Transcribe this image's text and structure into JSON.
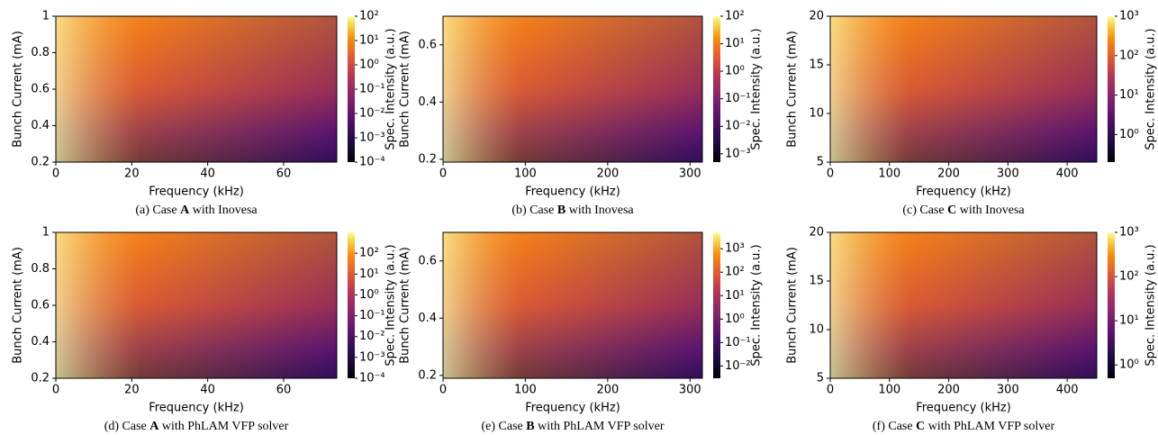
{
  "chart_data": [
    {
      "type": "heatmap",
      "colormap": "inferno",
      "caption": {
        "prefix": "(a) Case ",
        "bold": "A",
        "suffix": " with Inovesa"
      },
      "xlabel": "Frequency (kHz)",
      "ylabel": "Bunch Current (mA)",
      "xlim": [
        0,
        74
      ],
      "xticks": [
        0,
        20,
        40,
        60
      ],
      "ylim": [
        0.2,
        1
      ],
      "yticks": [
        0.2,
        0.4,
        0.6,
        0.8,
        1
      ],
      "colorbar": {
        "label": "Spec. Intensity (a.u.)",
        "log": true,
        "lim": [
          0.0001,
          100
        ],
        "ticks": [
          {
            "value": 0.0001,
            "label": "10⁻⁴"
          },
          {
            "value": 0.001,
            "label": "10⁻³"
          },
          {
            "value": 0.01,
            "label": "10⁻²"
          },
          {
            "value": 0.1,
            "label": "10⁻¹"
          },
          {
            "value": 1,
            "label": "10⁰"
          },
          {
            "value": 10,
            "label": "10¹"
          },
          {
            "value": 100,
            "label": "10²"
          }
        ]
      }
    },
    {
      "type": "heatmap",
      "colormap": "inferno",
      "caption": {
        "prefix": "(b) Case ",
        "bold": "B",
        "suffix": " with Inovesa"
      },
      "xlabel": "Frequency (kHz)",
      "ylabel": "Bunch Current (mA)",
      "xlim": [
        0,
        315
      ],
      "xticks": [
        0,
        100,
        200,
        300
      ],
      "ylim": [
        0.19,
        0.7
      ],
      "yticks": [
        0.2,
        0.4,
        0.6
      ],
      "colorbar": {
        "label": "Spec. Intensity (a.u.)",
        "log": true,
        "lim": [
          0.0005,
          100
        ],
        "ticks": [
          {
            "value": 0.001,
            "label": "10⁻³"
          },
          {
            "value": 0.01,
            "label": "10⁻²"
          },
          {
            "value": 0.1,
            "label": "10⁻¹"
          },
          {
            "value": 1,
            "label": "10⁰"
          },
          {
            "value": 10,
            "label": "10¹"
          },
          {
            "value": 100,
            "label": "10²"
          }
        ]
      }
    },
    {
      "type": "heatmap",
      "colormap": "inferno",
      "caption": {
        "prefix": "(c) Case ",
        "bold": "C",
        "suffix": " with Inovesa"
      },
      "xlabel": "Frequency (kHz)",
      "ylabel": "Bunch Current (mA)",
      "xlim": [
        0,
        450
      ],
      "xticks": [
        0,
        100,
        200,
        300,
        400
      ],
      "ylim": [
        5,
        20
      ],
      "yticks": [
        5,
        10,
        15,
        20
      ],
      "colorbar": {
        "label": "Spec. Intensity (a.u.)",
        "log": true,
        "lim": [
          0.2,
          1000
        ],
        "ticks": [
          {
            "value": 1,
            "label": "10⁰"
          },
          {
            "value": 10,
            "label": "10¹"
          },
          {
            "value": 100,
            "label": "10²"
          },
          {
            "value": 1000,
            "label": "10³"
          }
        ]
      }
    },
    {
      "type": "heatmap",
      "colormap": "inferno",
      "caption": {
        "prefix": "(d) Case ",
        "bold": "A",
        "suffix": " with PhLAM VFP solver"
      },
      "xlabel": "Frequency (kHz)",
      "ylabel": "Bunch Current (mA)",
      "xlim": [
        0,
        74
      ],
      "xticks": [
        0,
        20,
        40,
        60
      ],
      "ylim": [
        0.2,
        1
      ],
      "yticks": [
        0.2,
        0.4,
        0.6,
        0.8,
        1
      ],
      "colorbar": {
        "label": "Spec. Intensity (a.u.)",
        "log": true,
        "lim": [
          0.0001,
          1000
        ],
        "ticks": [
          {
            "value": 0.0001,
            "label": "10⁻⁴"
          },
          {
            "value": 0.001,
            "label": "10⁻³"
          },
          {
            "value": 0.01,
            "label": "10⁻²"
          },
          {
            "value": 0.1,
            "label": "10⁻¹"
          },
          {
            "value": 1,
            "label": "10⁰"
          },
          {
            "value": 10,
            "label": "10¹"
          },
          {
            "value": 100,
            "label": "10²"
          }
        ]
      }
    },
    {
      "type": "heatmap",
      "colormap": "inferno",
      "caption": {
        "prefix": "(e) Case ",
        "bold": "B",
        "suffix": " with PhLAM VFP solver"
      },
      "xlabel": "Frequency (kHz)",
      "ylabel": "Bunch Current (mA)",
      "xlim": [
        0,
        315
      ],
      "xticks": [
        0,
        100,
        200,
        300
      ],
      "ylim": [
        0.19,
        0.7
      ],
      "yticks": [
        0.2,
        0.4,
        0.6
      ],
      "colorbar": {
        "label": "Spec. Intensity (a.u.)",
        "log": true,
        "lim": [
          0.003,
          5000
        ],
        "ticks": [
          {
            "value": 0.01,
            "label": "10⁻²"
          },
          {
            "value": 0.1,
            "label": "10⁻¹"
          },
          {
            "value": 1,
            "label": "10⁰"
          },
          {
            "value": 10,
            "label": "10¹"
          },
          {
            "value": 100,
            "label": "10²"
          },
          {
            "value": 1000,
            "label": "10³"
          }
        ]
      }
    },
    {
      "type": "heatmap",
      "colormap": "inferno",
      "caption": {
        "prefix": "(f) Case ",
        "bold": "C",
        "suffix": " with PhLAM VFP solver"
      },
      "xlabel": "Frequency (kHz)",
      "ylabel": "Bunch Current (mA)",
      "xlim": [
        0,
        450
      ],
      "xticks": [
        0,
        100,
        200,
        300,
        400
      ],
      "ylim": [
        5,
        20
      ],
      "yticks": [
        5,
        10,
        15,
        20
      ],
      "colorbar": {
        "label": "Spec. Intensity (a.u.)",
        "log": true,
        "lim": [
          0.5,
          1000
        ],
        "ticks": [
          {
            "value": 1,
            "label": "10⁰"
          },
          {
            "value": 10,
            "label": "10¹"
          },
          {
            "value": 100,
            "label": "10²"
          },
          {
            "value": 1000,
            "label": "10³"
          }
        ]
      }
    }
  ]
}
